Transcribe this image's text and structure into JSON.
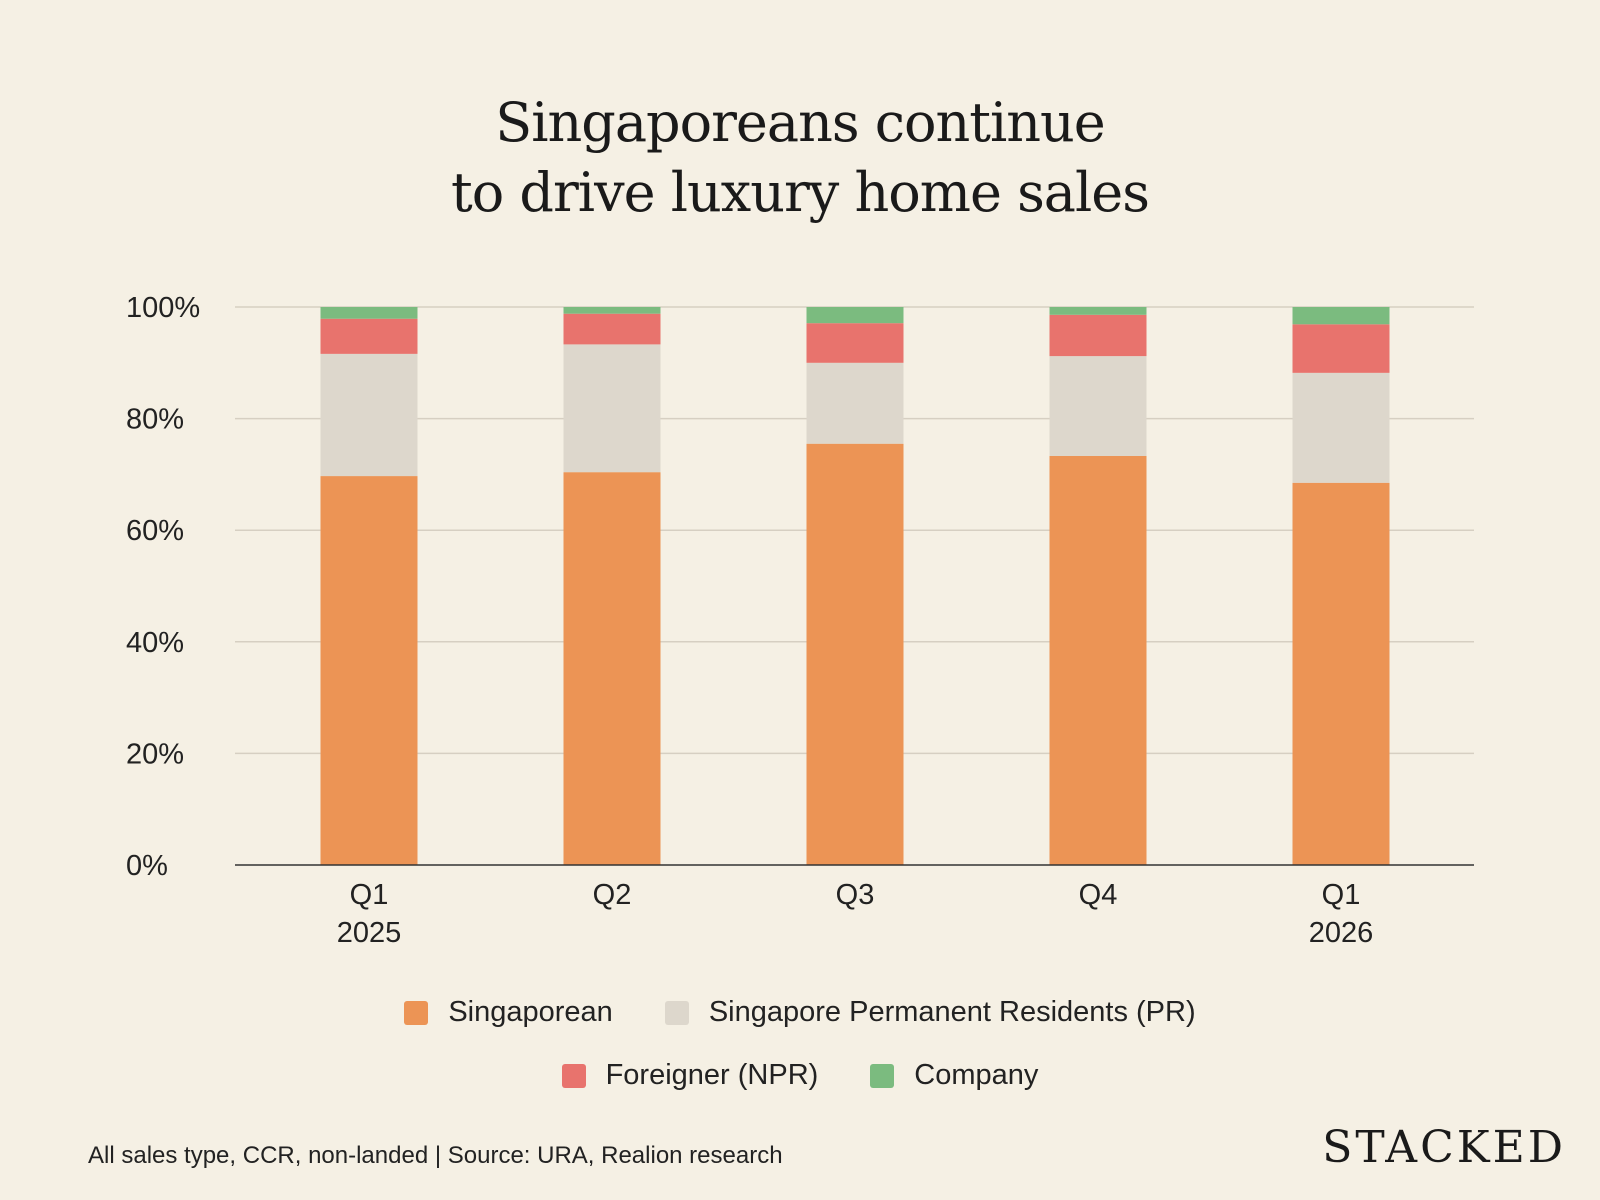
{
  "title_lines": [
    "Singaporeans continue",
    "to drive luxury home sales"
  ],
  "chart_data": {
    "type": "bar",
    "stacked": true,
    "title": "Singaporeans continue to drive luxury home sales",
    "categories": [
      [
        "Q1",
        "2025"
      ],
      [
        "Q2",
        ""
      ],
      [
        "Q3",
        ""
      ],
      [
        "Q4",
        ""
      ],
      [
        "Q1",
        "2026"
      ]
    ],
    "series": [
      {
        "name": "Singaporean",
        "color": "#ec9455",
        "values": [
          69.7,
          70.4,
          75.5,
          73.3,
          68.5
        ]
      },
      {
        "name": "Singapore Permanent Residents (PR)",
        "color": "#ddd7cc",
        "values": [
          21.9,
          22.9,
          14.5,
          17.9,
          19.7
        ]
      },
      {
        "name": "Foreigner (NPR)",
        "color": "#e8736d",
        "values": [
          6.3,
          5.5,
          7.1,
          7.4,
          8.7
        ]
      },
      {
        "name": "Company",
        "color": "#7bbb7f",
        "values": [
          2.1,
          1.2,
          2.9,
          1.4,
          3.1
        ]
      }
    ],
    "ylim": [
      0,
      100
    ],
    "yticks": [
      "0%",
      "20%",
      "40%",
      "60%",
      "80%",
      "100%"
    ],
    "grid": true,
    "legend_placement": "bottom"
  },
  "footer": "All sales type, CCR, non-landed | Source: URA, Realion research",
  "logo": "STACKED"
}
